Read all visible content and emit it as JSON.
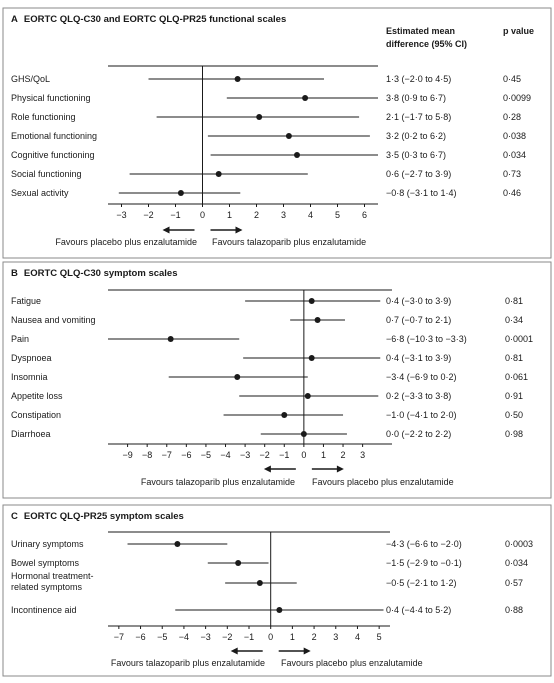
{
  "chart_data": [
    {
      "type": "forest",
      "panel_letter": "A",
      "title": "EORTC QLQ-C30 and EORTC QLQ-PR25 functional scales",
      "column_headers": {
        "estimate": [
          "Estimated mean",
          "difference (95% CI)"
        ],
        "p": "p value"
      },
      "xlim": [
        -3.5,
        6.5
      ],
      "ticks": [
        -3,
        -2,
        -1,
        0,
        1,
        2,
        3,
        4,
        5,
        6
      ],
      "tick_labels": [
        "−3",
        "−2",
        "−1",
        "0",
        "1",
        "2",
        "3",
        "4",
        "5",
        "6"
      ],
      "favours_left": "Favours placebo plus enzalutamide",
      "favours_right": "Favours talazoparib plus enzalutamide",
      "rows": [
        {
          "label": [
            "GHS/QoL"
          ],
          "est": 1.3,
          "lo": -2.0,
          "hi": 4.5,
          "ci_text": "1·3 (−2·0 to 4·5)",
          "p": "0·45"
        },
        {
          "label": [
            "Physical functioning"
          ],
          "est": 3.8,
          "lo": 0.9,
          "hi": 6.7,
          "ci_text": "3·8 (0·9 to 6·7)",
          "p": "0·0099"
        },
        {
          "label": [
            "Role functioning"
          ],
          "est": 2.1,
          "lo": -1.7,
          "hi": 5.8,
          "ci_text": "2·1 (−1·7 to 5·8)",
          "p": "0·28"
        },
        {
          "label": [
            "Emotional functioning"
          ],
          "est": 3.2,
          "lo": 0.2,
          "hi": 6.2,
          "ci_text": "3·2 (0·2 to 6·2)",
          "p": "0·038"
        },
        {
          "label": [
            "Cognitive functioning"
          ],
          "est": 3.5,
          "lo": 0.3,
          "hi": 6.7,
          "ci_text": "3·5 (0·3 to 6·7)",
          "p": "0·034"
        },
        {
          "label": [
            "Social functioning"
          ],
          "est": 0.6,
          "lo": -2.7,
          "hi": 3.9,
          "ci_text": "0·6 (−2·7 to 3·9)",
          "p": "0·73"
        },
        {
          "label": [
            "Sexual activity"
          ],
          "est": -0.8,
          "lo": -3.1,
          "hi": 1.4,
          "ci_text": "−0·8 (−3·1 to 1·4)",
          "p": "0·46"
        }
      ]
    },
    {
      "type": "forest",
      "panel_letter": "B",
      "title": "EORTC QLQ-C30 symptom scales",
      "xlim": [
        -10,
        4.5
      ],
      "ticks": [
        -9,
        -8,
        -7,
        -6,
        -5,
        -4,
        -3,
        -2,
        -1,
        0,
        1,
        2,
        3
      ],
      "tick_labels": [
        "−9",
        "−8",
        "−7",
        "−6",
        "−5",
        "−4",
        "−3",
        "−2",
        "−1",
        "0",
        "1",
        "2",
        "3"
      ],
      "favours_left": "Favours talazoparib plus enzalutamide",
      "favours_right": "Favours placebo plus enzalutamide",
      "rows": [
        {
          "label": [
            "Fatigue"
          ],
          "est": 0.4,
          "lo": -3.0,
          "hi": 3.9,
          "ci_text": "0·4 (−3·0 to 3·9)",
          "p": "0·81"
        },
        {
          "label": [
            "Nausea and vomiting"
          ],
          "est": 0.7,
          "lo": -0.7,
          "hi": 2.1,
          "ci_text": "0·7 (−0·7 to 2·1)",
          "p": "0·34"
        },
        {
          "label": [
            "Pain"
          ],
          "est": -6.8,
          "lo": -10.3,
          "hi": -3.3,
          "ci_text": "−6·8 (−10·3 to −3·3)",
          "p": "0·0001"
        },
        {
          "label": [
            "Dyspnoea"
          ],
          "est": 0.4,
          "lo": -3.1,
          "hi": 3.9,
          "ci_text": "0·4 (−3·1 to 3·9)",
          "p": "0·81"
        },
        {
          "label": [
            "Insomnia"
          ],
          "est": -3.4,
          "lo": -6.9,
          "hi": 0.2,
          "ci_text": "−3·4 (−6·9 to 0·2)",
          "p": "0·061"
        },
        {
          "label": [
            "Appetite loss"
          ],
          "est": 0.2,
          "lo": -3.3,
          "hi": 3.8,
          "ci_text": "0·2 (−3·3 to 3·8)",
          "p": "0·91"
        },
        {
          "label": [
            "Constipation"
          ],
          "est": -1.0,
          "lo": -4.1,
          "hi": 2.0,
          "ci_text": "−1·0 (−4·1 to 2·0)",
          "p": "0·50"
        },
        {
          "label": [
            "Diarrhoea"
          ],
          "est": 0.0,
          "lo": -2.2,
          "hi": 2.2,
          "ci_text": "0·0 (−2·2 to 2·2)",
          "p": "0·98"
        }
      ]
    },
    {
      "type": "forest",
      "panel_letter": "C",
      "title": "EORTC QLQ-PR25 symptom scales",
      "xlim": [
        -7.5,
        5.5
      ],
      "ticks": [
        -7,
        -6,
        -5,
        -4,
        -3,
        -2,
        -1,
        0,
        1,
        2,
        3,
        4,
        5
      ],
      "tick_labels": [
        "−7",
        "−6",
        "−5",
        "−4",
        "−3",
        "−2",
        "−1",
        "0",
        "1",
        "2",
        "3",
        "4",
        "5"
      ],
      "favours_left": "Favours talazoparib plus enzalutamide",
      "favours_right": "Favours placebo plus enzalutamide",
      "rows": [
        {
          "label": [
            "Urinary symptoms"
          ],
          "est": -4.3,
          "lo": -6.6,
          "hi": -2.0,
          "ci_text": "−4·3 (−6·6 to −2·0)",
          "p": "0·0003"
        },
        {
          "label": [
            "Bowel symptoms"
          ],
          "est": -1.5,
          "lo": -2.9,
          "hi": -0.1,
          "ci_text": "−1·5 (−2·9 to −0·1)",
          "p": "0·034"
        },
        {
          "label": [
            "Hormonal treatment-",
            "related symptoms"
          ],
          "est": -0.5,
          "lo": -2.1,
          "hi": 1.2,
          "ci_text": "−0·5 (−2·1 to 1·2)",
          "p": "0·57"
        },
        {
          "label": [
            "Incontinence aid"
          ],
          "est": 0.4,
          "lo": -4.4,
          "hi": 5.2,
          "ci_text": "0·4 (−4·4 to 5·2)",
          "p": "0·88"
        }
      ]
    }
  ],
  "colors": {
    "panel_border": "#8a8a8a",
    "ink": "#1a1a1a"
  }
}
